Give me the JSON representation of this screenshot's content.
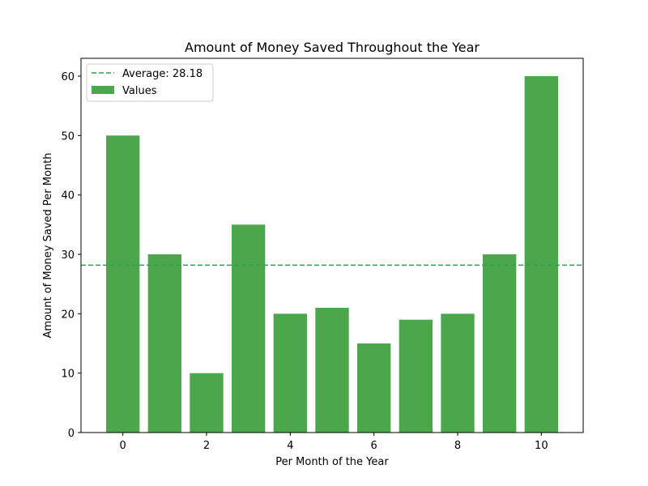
{
  "chart_data": {
    "type": "bar",
    "title": "Amount of Money Saved Throughout the Year",
    "xlabel": "Per Month of the Year",
    "ylabel": "Amount of Money Saved Per Month",
    "x": [
      0,
      1,
      2,
      3,
      4,
      5,
      6,
      7,
      8,
      9,
      10
    ],
    "values": [
      50,
      30,
      10,
      35,
      20,
      21,
      15,
      19,
      20,
      30,
      60
    ],
    "xlim": [
      -1,
      11
    ],
    "ylim": [
      0,
      63
    ],
    "xticks": [
      0,
      2,
      4,
      6,
      8,
      10
    ],
    "yticks": [
      0,
      10,
      20,
      30,
      40,
      50,
      60
    ],
    "average": 28.18,
    "legend": {
      "placement": "top-left",
      "entries": [
        "Average: 28.18",
        "Values"
      ]
    },
    "colors": {
      "bar": "#4ca64c",
      "average_line": "#2ca24f"
    },
    "grid": false
  }
}
